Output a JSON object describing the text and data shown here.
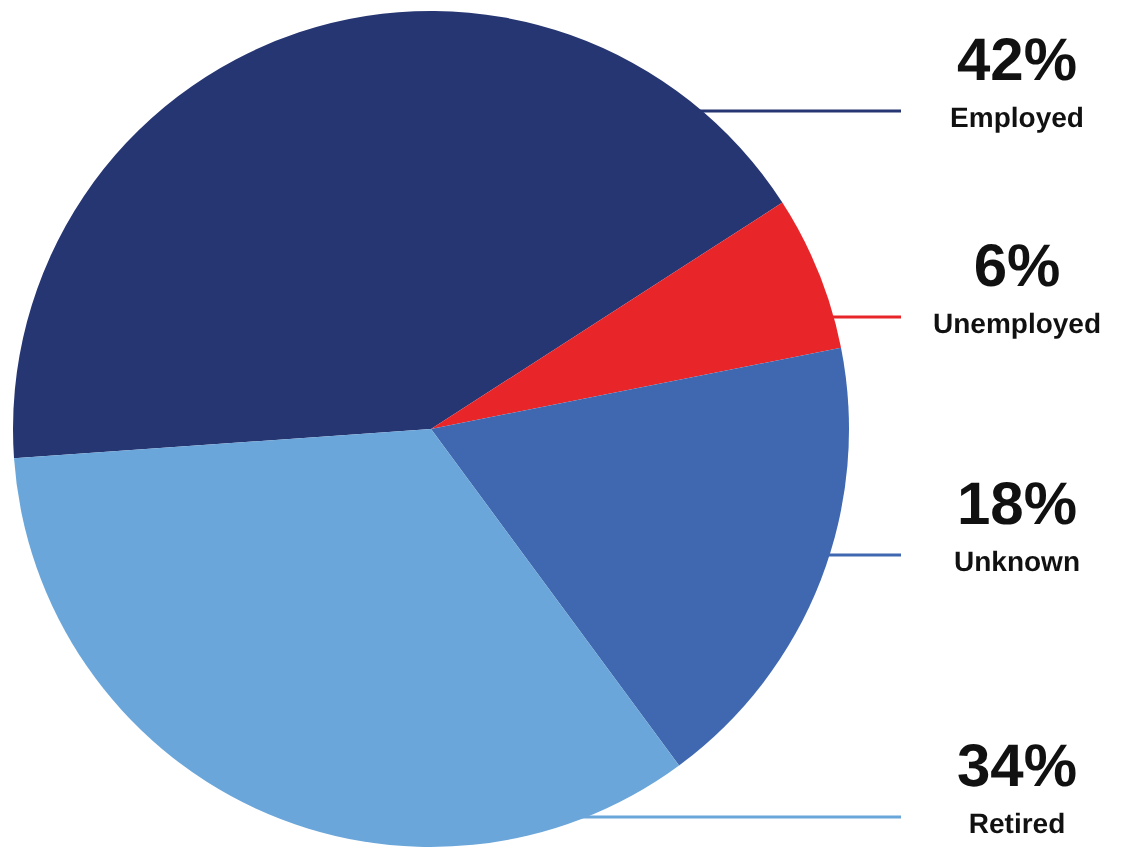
{
  "chart_data": {
    "type": "pie",
    "categories": [
      "Employed",
      "Unemployed",
      "Unknown",
      "Retired"
    ],
    "values": [
      42,
      6,
      18,
      34
    ],
    "colors": [
      "#263673",
      "#e8262a",
      "#3f68b0",
      "#6aa6da"
    ],
    "value_labels": [
      "42%",
      "6%",
      "18%",
      "34%"
    ]
  }
}
